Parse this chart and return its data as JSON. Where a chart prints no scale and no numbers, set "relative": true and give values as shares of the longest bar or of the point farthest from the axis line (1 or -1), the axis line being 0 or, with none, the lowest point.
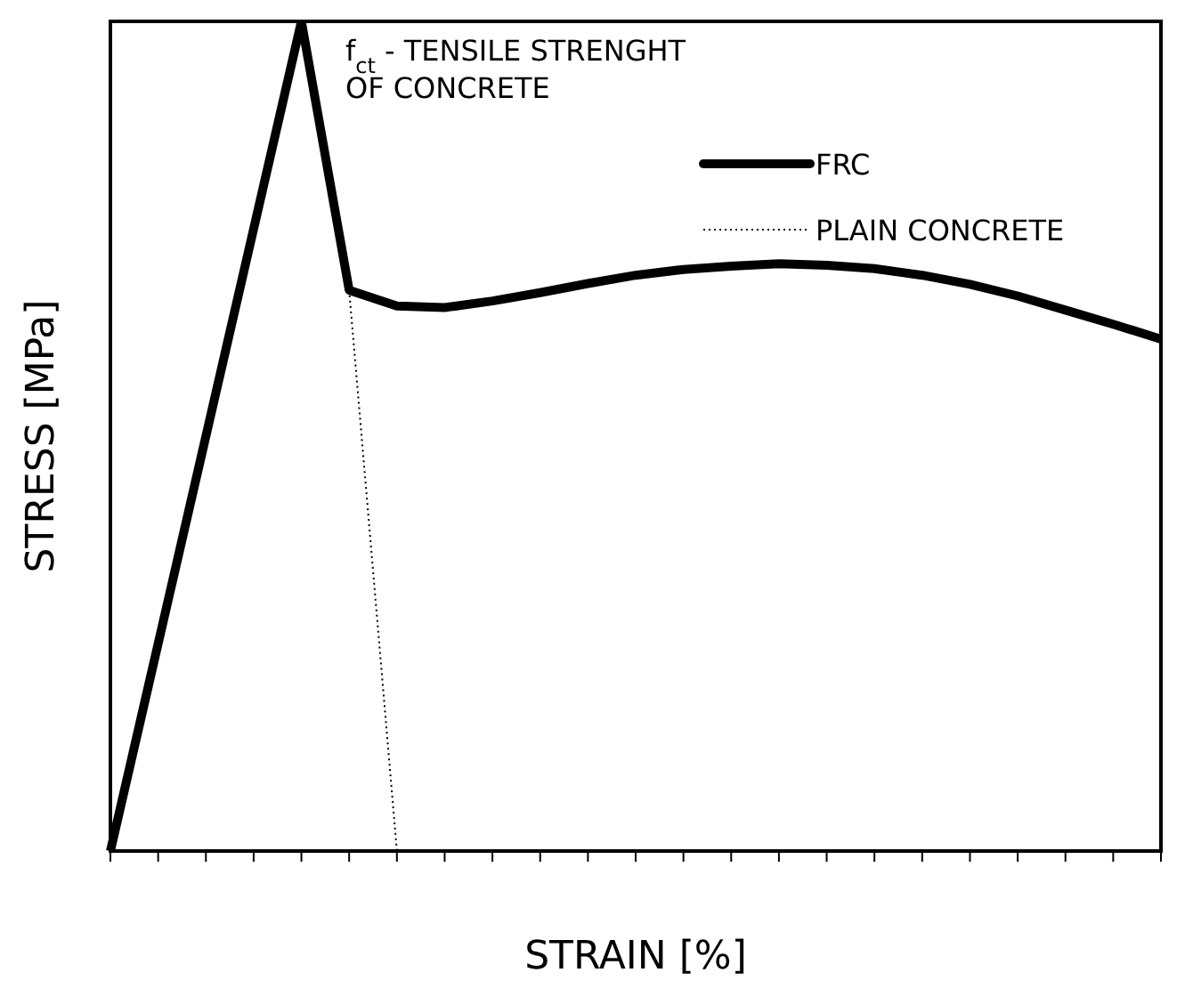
{
  "chart_data": {
    "type": "line",
    "relative": true,
    "xlabel": "STRAIN [%]",
    "ylabel": "STRESS [MPa]",
    "categories": [
      null,
      null,
      null,
      null,
      null,
      null,
      null,
      null,
      null,
      null,
      null,
      null,
      null,
      null,
      null,
      null,
      null,
      null,
      null,
      null,
      null,
      null,
      null
    ],
    "series": [
      {
        "name": "FRC",
        "color": "#000000",
        "line_style": "solid",
        "values": [
          0,
          0.25,
          0.5,
          0.75,
          1,
          0.676,
          0.657,
          0.655,
          0.663,
          0.673,
          0.684,
          0.694,
          0.701,
          0.705,
          0.708,
          0.706,
          0.702,
          0.694,
          0.683,
          0.669,
          0.652,
          0.635,
          0.617
        ]
      },
      {
        "name": "PLAIN CONCRETE",
        "color": "#000000",
        "line_style": "dotted",
        "values": [
          null,
          null,
          null,
          null,
          null,
          0.676,
          0,
          null,
          null,
          null,
          null,
          null,
          null,
          null,
          null,
          null,
          null,
          null,
          null,
          null,
          null,
          null,
          null
        ]
      }
    ],
    "marker": "none",
    "legend": "top right",
    "annotations": [
      "f$_{ct}$ - TENSILE STRENGHT\nOF CONCRETE"
    ]
  }
}
